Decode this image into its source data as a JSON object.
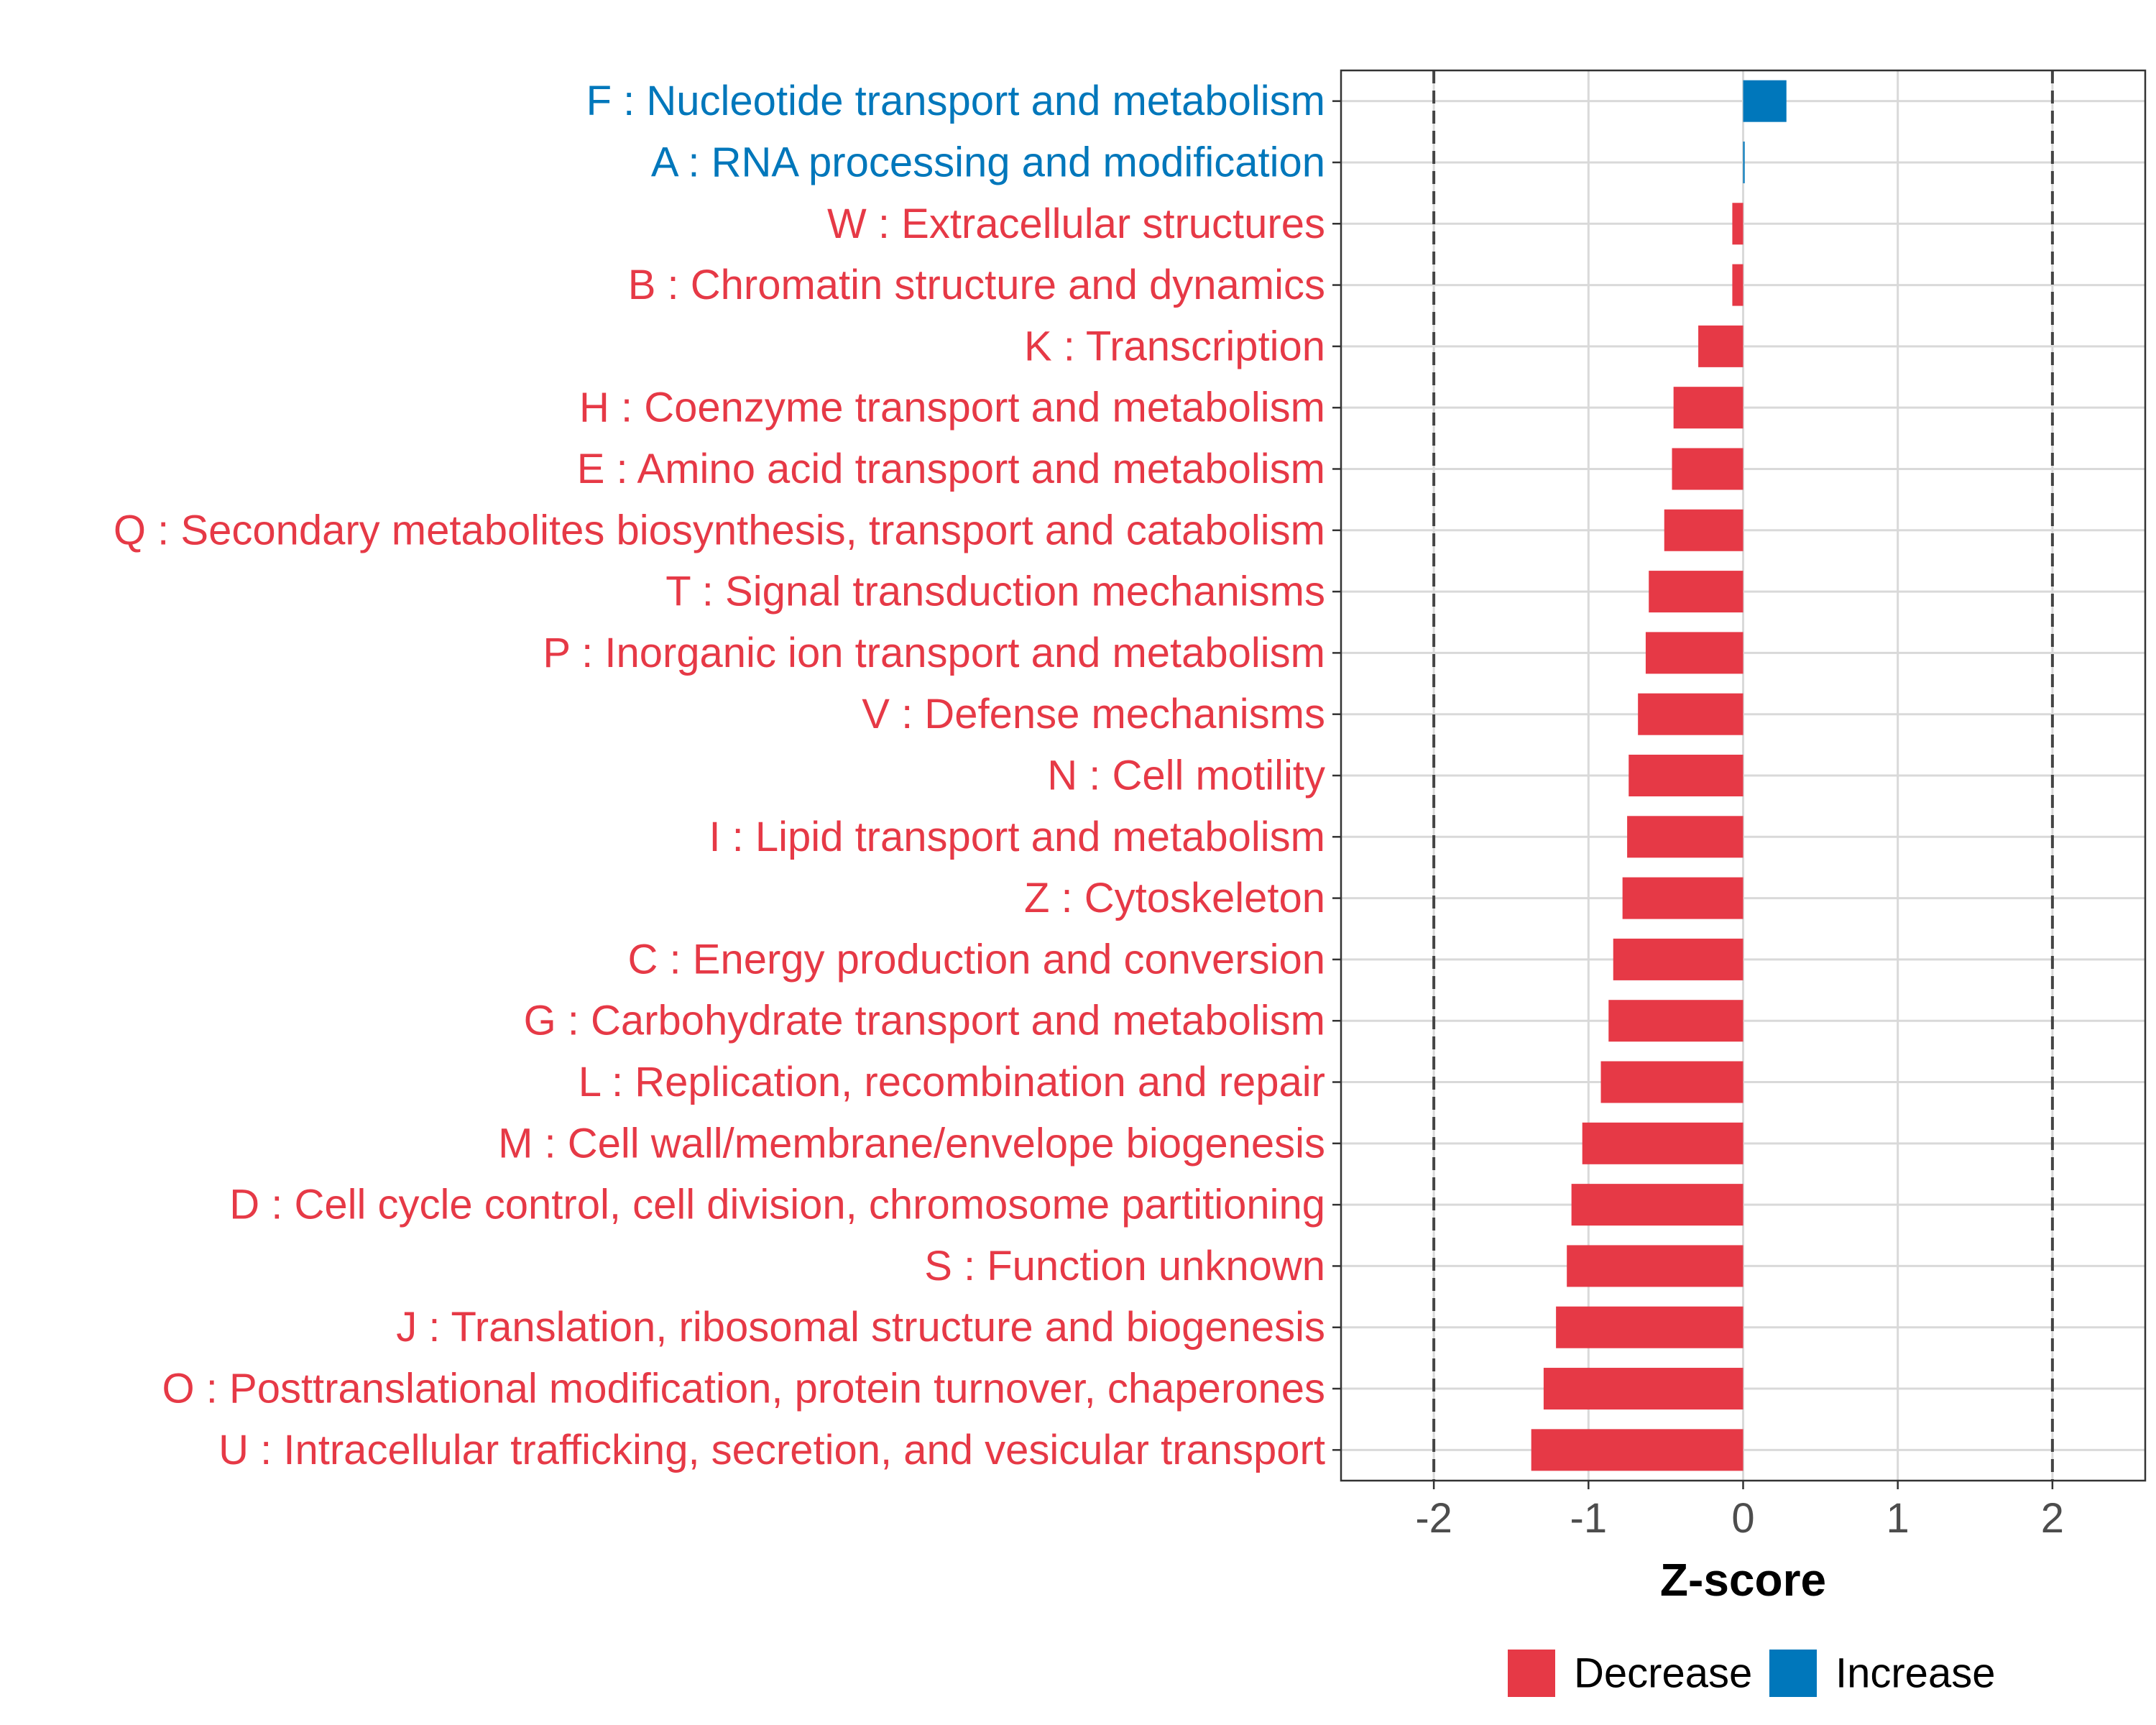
{
  "chart_data": {
    "type": "bar",
    "orientation": "horizontal",
    "title": "",
    "xlabel": "Z-score",
    "ylabel": "",
    "xlim": [
      -2.6,
      2.6
    ],
    "xticks": [
      -2,
      -1,
      0,
      1,
      2
    ],
    "xtick_labels": [
      "-2",
      "-1",
      "0",
      "1",
      "2"
    ],
    "reference_lines": [
      -2,
      2
    ],
    "grid": true,
    "colors": {
      "Decrease": "#E63946",
      "Increase": "#0077BB"
    },
    "legend": {
      "position": "bottom",
      "entries": [
        {
          "label": "Decrease",
          "color": "#E63946"
        },
        {
          "label": "Increase",
          "color": "#0077BB"
        }
      ]
    },
    "categories": [
      "F : Nucleotide transport and metabolism",
      "A : RNA processing and modification",
      "W : Extracellular structures",
      "B : Chromatin structure and dynamics",
      "K : Transcription",
      "H : Coenzyme transport and metabolism",
      "E : Amino acid transport and metabolism",
      "Q : Secondary metabolites biosynthesis, transport and catabolism",
      "T : Signal transduction mechanisms",
      "P : Inorganic ion transport and metabolism",
      "V : Defense mechanisms",
      "N : Cell motility",
      "I : Lipid transport and metabolism",
      "Z : Cytoskeleton",
      "C : Energy production and conversion",
      "G : Carbohydrate transport and metabolism",
      "L : Replication, recombination and repair",
      "M : Cell wall/membrane/envelope biogenesis",
      "D : Cell cycle control, cell division, chromosome partitioning",
      "S : Function unknown",
      "J : Translation, ribosomal structure and biogenesis",
      "O : Posttranslational modification, protein turnover, chaperones",
      "U : Intracellular trafficking, secretion, and vesicular transport"
    ],
    "values": [
      0.28,
      0.01,
      -0.07,
      -0.07,
      -0.29,
      -0.45,
      -0.46,
      -0.51,
      -0.61,
      -0.63,
      -0.68,
      -0.74,
      -0.75,
      -0.78,
      -0.84,
      -0.87,
      -0.92,
      -1.04,
      -1.11,
      -1.14,
      -1.21,
      -1.29,
      -1.37
    ],
    "direction": [
      "Increase",
      "Increase",
      "Decrease",
      "Decrease",
      "Decrease",
      "Decrease",
      "Decrease",
      "Decrease",
      "Decrease",
      "Decrease",
      "Decrease",
      "Decrease",
      "Decrease",
      "Decrease",
      "Decrease",
      "Decrease",
      "Decrease",
      "Decrease",
      "Decrease",
      "Decrease",
      "Decrease",
      "Decrease",
      "Decrease"
    ]
  }
}
